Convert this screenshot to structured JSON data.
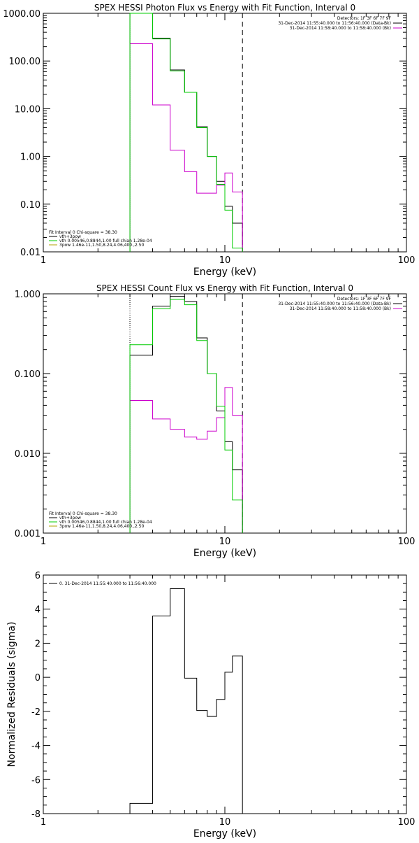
{
  "colors": {
    "black": "#000000",
    "magenta": "#cc00cc",
    "green": "#00cc00",
    "olive": "#b0a000"
  },
  "chart_data": [
    {
      "type": "line",
      "title": "SPEX HESSI Photon Flux vs Energy with Fit Function, Interval 0",
      "xlabel": "Energy (keV)",
      "ylabel": "",
      "xscale": "log",
      "yscale": "log",
      "xlim": [
        1,
        100
      ],
      "ylim": [
        0.01,
        1000
      ],
      "xticks": [
        1,
        10,
        100
      ],
      "xticklabels": [
        "1",
        "10",
        "100"
      ],
      "yticks": [
        0.01,
        0.1,
        1,
        10,
        100,
        1000
      ],
      "yticklabels": [
        "0.01",
        "0.10",
        "1.00",
        "10.00",
        "100.00",
        "1000.00"
      ],
      "vlines": [
        {
          "x": 3,
          "style": "dotted"
        },
        {
          "x": 12.5,
          "style": "dashed"
        }
      ],
      "edges": [
        3,
        4,
        5,
        6,
        7,
        8,
        9,
        10,
        11,
        12.5
      ],
      "series": [
        {
          "style": "black",
          "values": [
            1000,
            300,
            65,
            22,
            4.2,
            1.0,
            0.3,
            0.09,
            0.04
          ]
        },
        {
          "style": "magenta",
          "values": [
            230,
            12,
            1.35,
            0.48,
            0.17,
            0.17,
            0.25,
            0.45,
            0.18
          ]
        },
        {
          "style": "green",
          "values": [
            1000,
            290,
            62,
            22,
            4.0,
            1.0,
            0.26,
            0.075,
            0.012
          ]
        }
      ],
      "legend_right": {
        "title": "Detectors: 1F 3F 6F 7F 9F",
        "entries": [
          {
            "text": "31-Dec-2014 11:55:40.000 to 11:56:40.000 (Data-Bk)",
            "color": "black"
          },
          {
            "text": "31-Dec-2014 11:58:40.000 to 11:58:40.000 (Bk)",
            "color": "magenta"
          }
        ]
      },
      "legend_left": {
        "title": "Fit Interval 0   Chi-square = 38.30",
        "entries": [
          {
            "text": "vth+3pow",
            "color": "black"
          },
          {
            "text": "vth 0.00546,0.8844,1.00   full chian 1.28e-04",
            "color": "green"
          },
          {
            "text": "3pow 1.46e-11,1.50,8.24,4.06,400.,2.50",
            "color": "olive"
          }
        ]
      }
    },
    {
      "type": "line",
      "title": "SPEX HESSI Count Flux vs Energy with Fit Function, Interval 0",
      "xlabel": "Energy (keV)",
      "ylabel": "",
      "xscale": "log",
      "yscale": "log",
      "xlim": [
        1,
        100
      ],
      "ylim": [
        0.001,
        1
      ],
      "xticks": [
        1,
        10,
        100
      ],
      "xticklabels": [
        "1",
        "10",
        "100"
      ],
      "yticks": [
        0.001,
        0.01,
        0.1,
        1
      ],
      "yticklabels": [
        "0.001",
        "0.010",
        "0.100",
        "1.000"
      ],
      "vlines": [
        {
          "x": 3,
          "style": "dotted"
        },
        {
          "x": 12.5,
          "style": "dashed"
        }
      ],
      "edges": [
        3,
        4,
        5,
        6,
        7,
        8,
        9,
        10,
        11,
        12.5
      ],
      "series": [
        {
          "style": "black",
          "values": [
            0.17,
            0.7,
            0.93,
            0.8,
            0.28,
            0.1,
            0.034,
            0.014,
            0.0062
          ]
        },
        {
          "style": "magenta",
          "values": [
            0.046,
            0.027,
            0.02,
            0.016,
            0.015,
            0.019,
            0.028,
            0.067,
            0.03
          ]
        },
        {
          "style": "green",
          "values": [
            0.23,
            0.65,
            0.85,
            0.73,
            0.26,
            0.1,
            0.039,
            0.011,
            0.0026
          ]
        }
      ],
      "legend_right": {
        "title": "Detectors: 1F 3F 6F 7F 9F",
        "entries": [
          {
            "text": "31-Dec-2014 11:55:40.000 to 11:56:40.000 (Data-Bk)",
            "color": "black"
          },
          {
            "text": "31-Dec-2014 11:58:40.000 to 11:58:40.000 (Bk)",
            "color": "magenta"
          }
        ]
      },
      "legend_left": {
        "title": "Fit Interval 0   Chi-square = 38.30",
        "entries": [
          {
            "text": "vth+3pow",
            "color": "black"
          },
          {
            "text": "vth 0.00546,0.8844,1.00   full chian 1.28e-04",
            "color": "green"
          },
          {
            "text": "3pow 1.46e-11,1.50,8.24,4.06,400.,2.50",
            "color": "olive"
          }
        ]
      }
    },
    {
      "type": "line",
      "title": "",
      "xlabel": "Energy (keV)",
      "ylabel": "Normalized Residuals (sigma)",
      "xscale": "log",
      "yscale": "linear",
      "xlim": [
        1,
        100
      ],
      "ylim": [
        -8,
        6
      ],
      "xticks": [
        1,
        10,
        100
      ],
      "xticklabels": [
        "1",
        "10",
        "100"
      ],
      "yticks": [
        -8,
        -6,
        -4,
        -2,
        0,
        2,
        4,
        6
      ],
      "yticklabels": [
        "-8",
        "-6",
        "-4",
        "-2",
        "0",
        "2",
        "4",
        "6"
      ],
      "edges": [
        3,
        4,
        5,
        6,
        7,
        8,
        9,
        10,
        11,
        12.5
      ],
      "series": [
        {
          "style": "black",
          "values": [
            -7.4,
            3.6,
            5.2,
            -0.05,
            -1.95,
            -2.3,
            -1.3,
            0.3,
            1.25
          ]
        }
      ],
      "legend_left": {
        "title": "",
        "entries": [
          {
            "text": "0. 31-Dec-2014 11:55:40.000 to 11:56:40.000",
            "color": "black"
          }
        ]
      }
    }
  ]
}
